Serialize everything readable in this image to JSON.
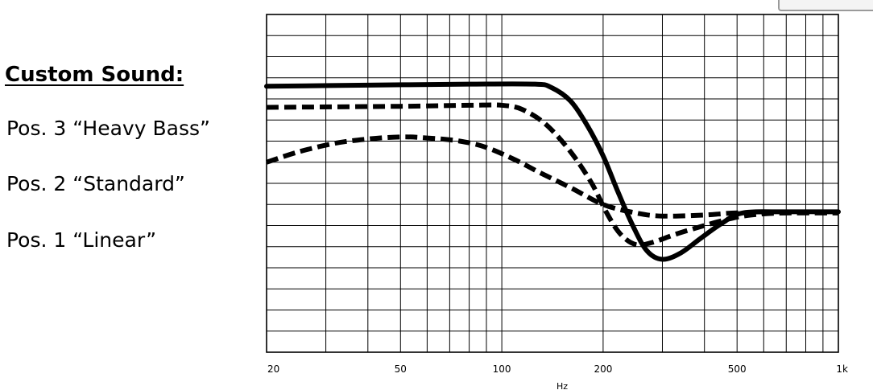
{
  "legend": {
    "title": "Custom Sound:",
    "items": [
      {
        "label": "Pos. 3 “Heavy Bass”"
      },
      {
        "label": "Pos. 2 “Standard”"
      },
      {
        "label": "Pos. 1 “Linear”"
      }
    ]
  },
  "chart_data": {
    "type": "line",
    "title": "",
    "xlabel": "Hz",
    "ylabel": "",
    "xscale": "log",
    "xlim": [
      20,
      1000
    ],
    "ylim": [
      0,
      16
    ],
    "grid": true,
    "legend_placement": "left",
    "xticks": [
      {
        "value": 20,
        "label": "20"
      },
      {
        "value": 50,
        "label": "50"
      },
      {
        "value": 100,
        "label": "100"
      },
      {
        "value": 200,
        "label": "200"
      },
      {
        "value": 500,
        "label": "500"
      },
      {
        "value": 1000,
        "label": "1k"
      }
    ],
    "series": [
      {
        "name": "Pos. 3 “Heavy Bass”",
        "style": "solid",
        "color": "#000000",
        "x": [
          20,
          40,
          80,
          125,
          140,
          160,
          180,
          200,
          220,
          245,
          270,
          300,
          340,
          390,
          450,
          520,
          700,
          1000
        ],
        "y": [
          12.6,
          12.65,
          12.7,
          12.7,
          12.55,
          11.9,
          10.7,
          9.3,
          7.7,
          6.0,
          4.8,
          4.4,
          4.7,
          5.4,
          6.1,
          6.6,
          6.65,
          6.65
        ]
      },
      {
        "name": "Pos. 2 “Standard”",
        "style": "dashed",
        "color": "#000000",
        "x": [
          20,
          50,
          80,
          100,
          115,
          135,
          160,
          185,
          205,
          225,
          250,
          280,
          330,
          400,
          470,
          550,
          700,
          1000
        ],
        "y": [
          11.6,
          11.65,
          11.7,
          11.7,
          11.5,
          10.8,
          9.5,
          8.0,
          6.6,
          5.6,
          5.1,
          5.2,
          5.6,
          6.0,
          6.3,
          6.5,
          6.6,
          6.6
        ]
      },
      {
        "name": "Pos. 1 “Linear”",
        "style": "dashed",
        "color": "#000000",
        "x": [
          20,
          25,
          32,
          40,
          50,
          60,
          75,
          90,
          110,
          130,
          160,
          200,
          250,
          300,
          400,
          500,
          700,
          1000
        ],
        "y": [
          9.0,
          9.5,
          9.9,
          10.1,
          10.2,
          10.15,
          10.0,
          9.7,
          9.1,
          8.5,
          7.8,
          7.0,
          6.6,
          6.45,
          6.5,
          6.6,
          6.6,
          6.6
        ]
      }
    ]
  }
}
